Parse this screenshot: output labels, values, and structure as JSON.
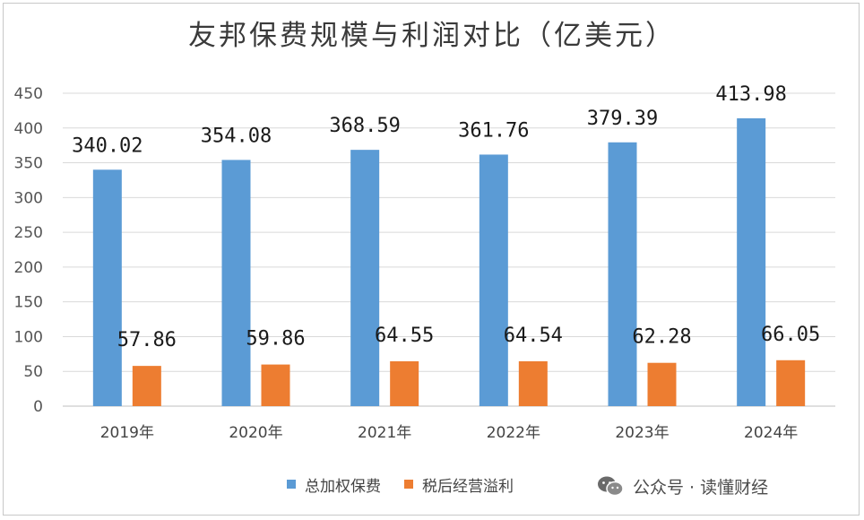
{
  "chart_data": {
    "type": "bar",
    "title": "友邦保费规模与利润对比（亿美元）",
    "categories": [
      "2019年",
      "2020年",
      "2021年",
      "2022年",
      "2023年",
      "2024年"
    ],
    "series": [
      {
        "name": "总加权保费",
        "color": "#5b9bd5",
        "values": [
          340.02,
          354.08,
          368.59,
          361.76,
          379.39,
          413.98
        ],
        "labels": [
          "340.02",
          "354.08",
          "368.59",
          "361.76",
          "379.39",
          "413.98"
        ]
      },
      {
        "name": "税后经营溢利",
        "color": "#ed7d31",
        "values": [
          57.86,
          59.86,
          64.55,
          64.54,
          62.28,
          66.05
        ],
        "labels": [
          "57.86",
          "59.86",
          "64.55",
          "64.54",
          "62.28",
          "66.05"
        ]
      }
    ],
    "ylim": [
      0,
      450
    ],
    "yticks": [
      0,
      50,
      100,
      150,
      200,
      250,
      300,
      350,
      400,
      450
    ],
    "grid": true,
    "legend": "bottom"
  },
  "watermark": {
    "text": "公众号 · 读懂财经",
    "icon": "wechat-icon"
  }
}
